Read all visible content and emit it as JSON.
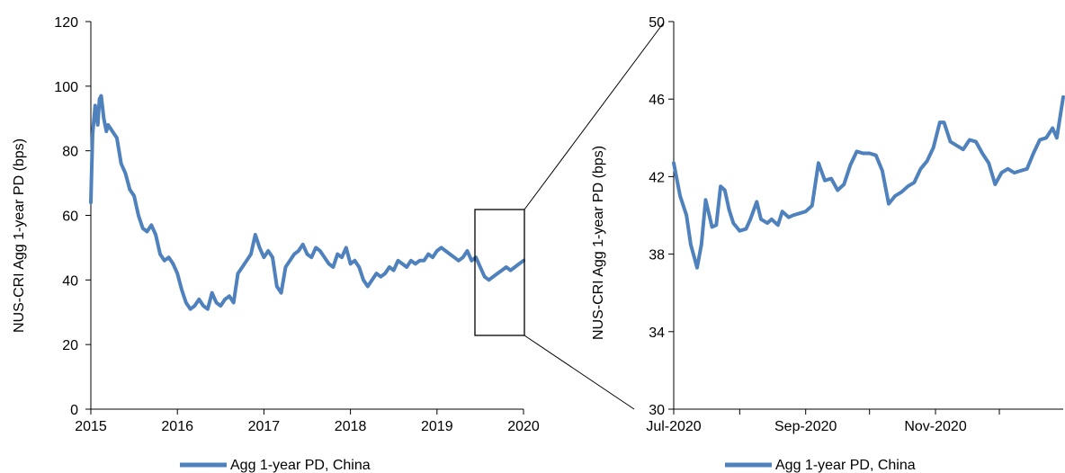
{
  "chart_data": [
    {
      "type": "line",
      "ylabel": "NUS-CRI Agg 1-year PD (bps)",
      "xlabel": "",
      "xlim": [
        2015,
        2020
      ],
      "ylim": [
        0,
        120
      ],
      "xticks": [
        "2015",
        "2016",
        "2017",
        "2018",
        "2019",
        "2020"
      ],
      "yticks": [
        "0",
        "20",
        "40",
        "60",
        "80",
        "100",
        "120"
      ],
      "grid": false,
      "legend_position": "bottom",
      "series": [
        {
          "name": "Agg 1-year PD, China",
          "color": "#4f81bd",
          "x": [
            2015.0,
            2015.02,
            2015.05,
            2015.08,
            2015.1,
            2015.12,
            2015.15,
            2015.18,
            2015.2,
            2015.25,
            2015.3,
            2015.35,
            2015.4,
            2015.45,
            2015.5,
            2015.55,
            2015.6,
            2015.65,
            2015.7,
            2015.75,
            2015.8,
            2015.85,
            2015.9,
            2015.95,
            2016.0,
            2016.05,
            2016.1,
            2016.15,
            2016.2,
            2016.25,
            2016.3,
            2016.35,
            2016.4,
            2016.45,
            2016.5,
            2016.55,
            2016.6,
            2016.65,
            2016.7,
            2016.75,
            2016.8,
            2016.85,
            2016.9,
            2016.95,
            2017.0,
            2017.05,
            2017.1,
            2017.15,
            2017.2,
            2017.25,
            2017.3,
            2017.35,
            2017.4,
            2017.45,
            2017.5,
            2017.55,
            2017.6,
            2017.65,
            2017.7,
            2017.75,
            2017.8,
            2017.85,
            2017.9,
            2017.95,
            2018.0,
            2018.05,
            2018.1,
            2018.15,
            2018.2,
            2018.25,
            2018.3,
            2018.35,
            2018.4,
            2018.45,
            2018.5,
            2018.55,
            2018.6,
            2018.65,
            2018.7,
            2018.75,
            2018.8,
            2018.85,
            2018.9,
            2018.95,
            2019.0,
            2019.05,
            2019.1,
            2019.15,
            2019.2,
            2019.25,
            2019.3,
            2019.35,
            2019.4,
            2019.45,
            2019.5,
            2019.55,
            2019.6,
            2019.65,
            2019.7,
            2019.75,
            2019.8,
            2019.85,
            2019.9,
            2019.95,
            2020.0
          ],
          "y": [
            64,
            85,
            94,
            88,
            96,
            97,
            90,
            86,
            88,
            86,
            84,
            76,
            73,
            68,
            66,
            60,
            56,
            55,
            57,
            54,
            48,
            46,
            47,
            45,
            42,
            37,
            33,
            31,
            32,
            34,
            32,
            31,
            36,
            33,
            32,
            34,
            35,
            33,
            42,
            44,
            46,
            48,
            54,
            50,
            47,
            49,
            47,
            38,
            36,
            44,
            46,
            48,
            49,
            51,
            48,
            47,
            50,
            49,
            47,
            45,
            44,
            48,
            47,
            50,
            45,
            46,
            44,
            40,
            38,
            40,
            42,
            41,
            42,
            44,
            43,
            46,
            45,
            44,
            46,
            45,
            46,
            46,
            48,
            47,
            49,
            50,
            49,
            48,
            47,
            46,
            47,
            49,
            46,
            47,
            44,
            41,
            40,
            41,
            42,
            43,
            44,
            43,
            44,
            45,
            46
          ]
        }
      ]
    },
    {
      "type": "line",
      "ylabel": "NUS-CRI Agg 1-year PD (bps)",
      "xlabel": "",
      "xlim": [
        "Jul-2020",
        "Dec-2020"
      ],
      "ylim": [
        30,
        50
      ],
      "xticks": [
        "Jul-2020",
        "Sep-2020",
        "Nov-2020"
      ],
      "yticks": [
        "30",
        "34",
        "38",
        "42",
        "46",
        "50"
      ],
      "grid": false,
      "legend_position": "bottom",
      "series": [
        {
          "name": "Agg 1-year PD, China",
          "color": "#4f81bd",
          "x": [
            "2020-07-01",
            "2020-07-04",
            "2020-07-07",
            "2020-07-09",
            "2020-07-12",
            "2020-07-14",
            "2020-07-16",
            "2020-07-19",
            "2020-07-21",
            "2020-07-23",
            "2020-07-25",
            "2020-07-27",
            "2020-07-29",
            "2020-08-01",
            "2020-08-04",
            "2020-08-06",
            "2020-08-09",
            "2020-08-11",
            "2020-08-14",
            "2020-08-16",
            "2020-08-19",
            "2020-08-21",
            "2020-08-24",
            "2020-08-26",
            "2020-08-29",
            "2020-09-01",
            "2020-09-04",
            "2020-09-07",
            "2020-09-10",
            "2020-09-13",
            "2020-09-16",
            "2020-09-19",
            "2020-09-22",
            "2020-09-25",
            "2020-09-28",
            "2020-10-01",
            "2020-10-04",
            "2020-10-07",
            "2020-10-10",
            "2020-10-13",
            "2020-10-16",
            "2020-10-19",
            "2020-10-22",
            "2020-10-25",
            "2020-10-28",
            "2020-10-31",
            "2020-11-03",
            "2020-11-05",
            "2020-11-08",
            "2020-11-11",
            "2020-11-14",
            "2020-11-17",
            "2020-11-20",
            "2020-11-23",
            "2020-11-26",
            "2020-11-29",
            "2020-12-02",
            "2020-12-05",
            "2020-12-08",
            "2020-12-11",
            "2020-12-14",
            "2020-12-17",
            "2020-12-20",
            "2020-12-23",
            "2020-12-26",
            "2020-12-28",
            "2020-12-31"
          ],
          "y": [
            42.7,
            41.0,
            40.0,
            38.5,
            37.3,
            38.5,
            40.8,
            39.4,
            39.5,
            41.5,
            41.3,
            40.3,
            39.6,
            39.2,
            39.3,
            39.8,
            40.7,
            39.8,
            39.6,
            39.8,
            39.5,
            40.2,
            39.9,
            40.0,
            40.1,
            40.2,
            40.5,
            42.7,
            41.8,
            41.9,
            41.3,
            41.6,
            42.6,
            43.3,
            43.2,
            43.2,
            43.1,
            42.3,
            40.6,
            41.0,
            41.2,
            41.5,
            41.7,
            42.4,
            42.8,
            43.5,
            44.8,
            44.8,
            43.8,
            43.6,
            43.4,
            43.9,
            43.8,
            43.2,
            42.7,
            41.6,
            42.2,
            42.4,
            42.2,
            42.3,
            42.4,
            43.2,
            43.9,
            44.0,
            44.5,
            44.0,
            46.1
          ]
        }
      ]
    }
  ]
}
